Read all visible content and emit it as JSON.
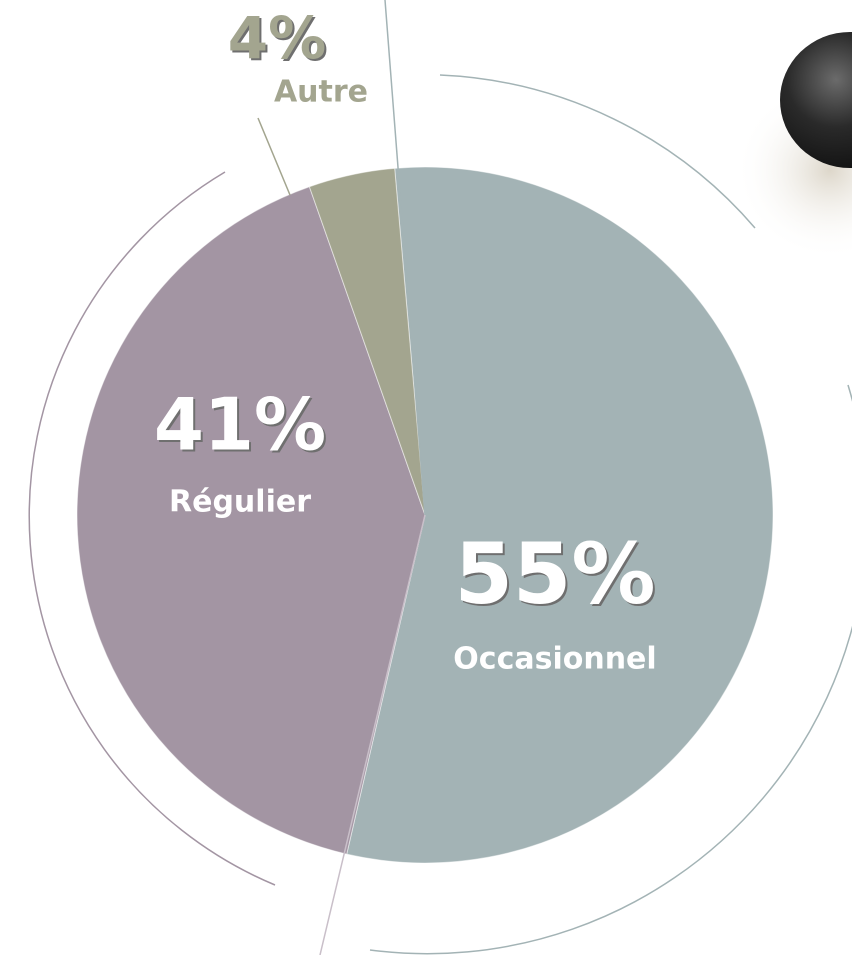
{
  "chart_data": {
    "type": "pie",
    "categories": [
      "Occasionnel",
      "Régulier",
      "Autre"
    ],
    "values": [
      55,
      41,
      4
    ],
    "value_labels": [
      "55%",
      "41%",
      "4%"
    ],
    "colors": [
      "#a3b3b5",
      "#a395a3",
      "#a3a58f"
    ]
  }
}
